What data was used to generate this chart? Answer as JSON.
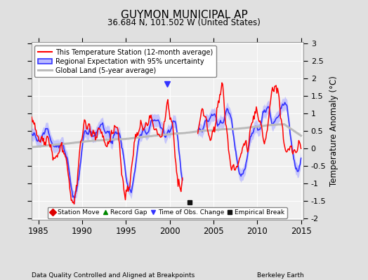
{
  "title": "GUYMON MUNICIPAL AP",
  "subtitle": "36.684 N, 101.502 W (United States)",
  "ylabel": "Temperature Anomaly (°C)",
  "xlabel_left": "Data Quality Controlled and Aligned at Breakpoints",
  "xlabel_right": "Berkeley Earth",
  "ylim": [
    -2.05,
    3.05
  ],
  "xlim": [
    1984.2,
    2015.3
  ],
  "xticks": [
    1985,
    1990,
    1995,
    2000,
    2005,
    2010,
    2015
  ],
  "yticks": [
    -2,
    -1.5,
    -1,
    -0.5,
    0,
    0.5,
    1,
    1.5,
    2,
    2.5,
    3
  ],
  "station_color": "#FF0000",
  "regional_color": "#3333FF",
  "regional_fill_color": "#BBBBFF",
  "global_color": "#BBBBBB",
  "bg_color": "#E0E0E0",
  "plot_bg_color": "#F0F0F0",
  "empirical_break_x": 2002.3,
  "empirical_break_y": -1.55,
  "time_of_obs_x": 1999.7,
  "time_of_obs_y": 1.85
}
